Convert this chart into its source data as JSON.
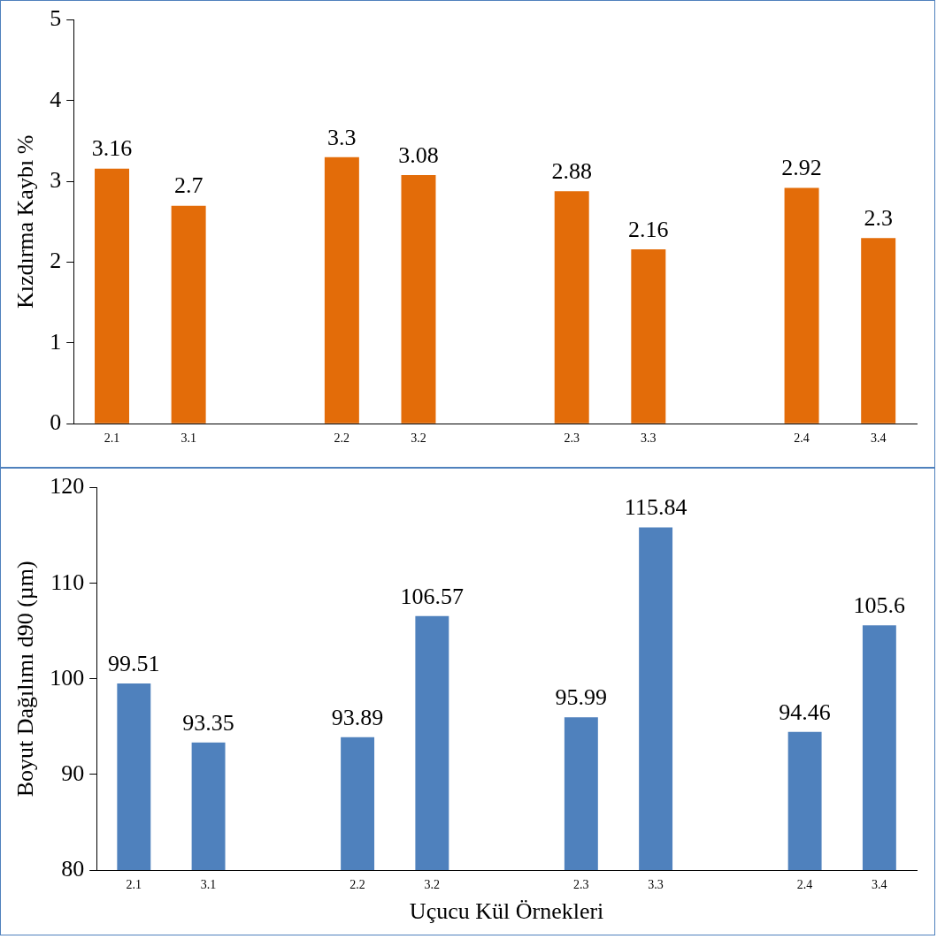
{
  "chart_data": [
    {
      "type": "bar",
      "ylabel": "Kızdırma Kaybı %",
      "categories": [
        "2.1",
        "3.1",
        null,
        "2.2",
        "3.2",
        null,
        "2.3",
        "3.3",
        null,
        "2.4",
        "3.4"
      ],
      "values": [
        3.16,
        2.7,
        null,
        3.3,
        3.08,
        null,
        2.88,
        2.16,
        null,
        2.92,
        2.3
      ],
      "color": "#e36c09",
      "ylim": [
        0,
        5
      ],
      "yticks": [
        0,
        1,
        2,
        3,
        4,
        5
      ],
      "grid": false,
      "legend": false,
      "data_labels": true
    },
    {
      "type": "bar",
      "xlabel": "Uçucu Kül Örnekleri",
      "ylabel": "Boyut Dağılımı d90 (µm)",
      "categories": [
        "2.1",
        "3.1",
        null,
        "2.2",
        "3.2",
        null,
        "2.3",
        "3.3",
        null,
        "2.4",
        "3.4"
      ],
      "values": [
        99.51,
        93.35,
        null,
        93.89,
        106.57,
        null,
        95.99,
        115.84,
        null,
        94.46,
        105.6
      ],
      "color": "#4f81bd",
      "ylim": [
        80,
        120
      ],
      "yticks": [
        80,
        90,
        100,
        110,
        120
      ],
      "grid": false,
      "legend": false,
      "data_labels": true
    }
  ]
}
